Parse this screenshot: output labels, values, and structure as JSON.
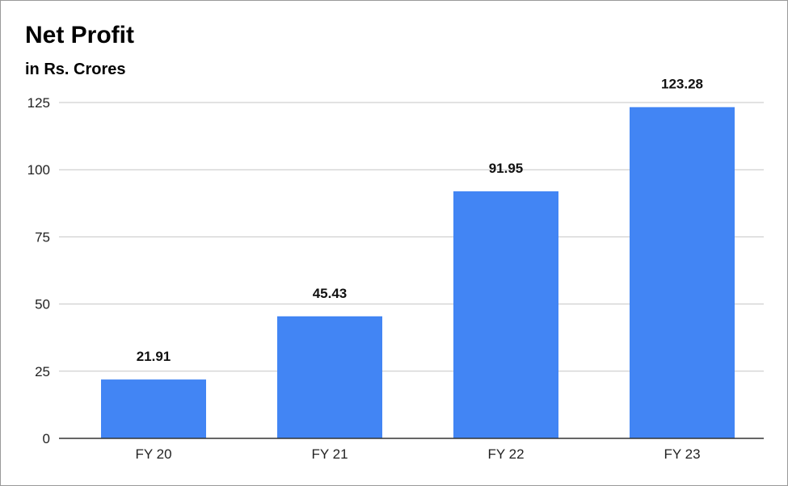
{
  "chart_data": {
    "type": "bar",
    "title": "Net Profit",
    "subtitle": "in Rs. Crores",
    "xlabel": "",
    "ylabel": "",
    "categories": [
      "FY 20",
      "FY 21",
      "FY 22",
      "FY 23"
    ],
    "values": [
      21.91,
      45.43,
      91.95,
      123.28
    ],
    "value_labels": [
      "21.91",
      "45.43",
      "91.95",
      "123.28"
    ],
    "yticks": [
      0,
      25,
      50,
      75,
      100,
      125
    ],
    "ylim": [
      0,
      125
    ],
    "grid": true,
    "legend": "none",
    "colors": {
      "bar": "#4285f4",
      "grid": "#c6c6c6",
      "axis": "#333333"
    }
  }
}
